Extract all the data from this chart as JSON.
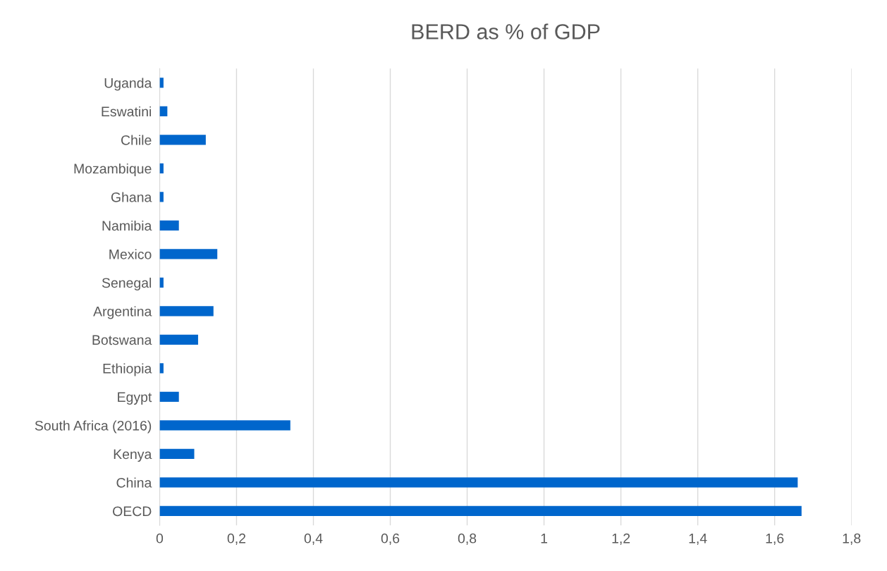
{
  "chart_data": {
    "type": "bar",
    "orientation": "horizontal",
    "title": "BERD as % of GDP",
    "categories": [
      "Uganda",
      "Eswatini",
      "Chile",
      "Mozambique",
      "Ghana",
      "Namibia",
      "Mexico",
      "Senegal",
      "Argentina",
      "Botswana",
      "Ethiopia",
      "Egypt",
      "South Africa (2016)",
      "Kenya",
      "China",
      "OECD"
    ],
    "values": [
      0.01,
      0.02,
      0.12,
      0.01,
      0.01,
      0.05,
      0.15,
      0.01,
      0.14,
      0.1,
      0.01,
      0.05,
      0.34,
      0.09,
      1.66,
      1.67
    ],
    "color": "#0066cc",
    "xlim": [
      0,
      1.8
    ],
    "xticks": [
      0,
      {
        "value": 0.2,
        "label": "0,2"
      },
      {
        "value": 0.4,
        "label": "0,4"
      },
      {
        "value": 0.6,
        "label": "0,6"
      },
      {
        "value": 0.8,
        "label": "0,8"
      },
      1,
      {
        "value": 1.2,
        "label": "1,2"
      },
      {
        "value": 1.4,
        "label": "1,4"
      },
      {
        "value": 1.6,
        "label": "1,6"
      },
      {
        "value": 1.8,
        "label": "1,8"
      }
    ],
    "grid": "x",
    "legend": false
  }
}
